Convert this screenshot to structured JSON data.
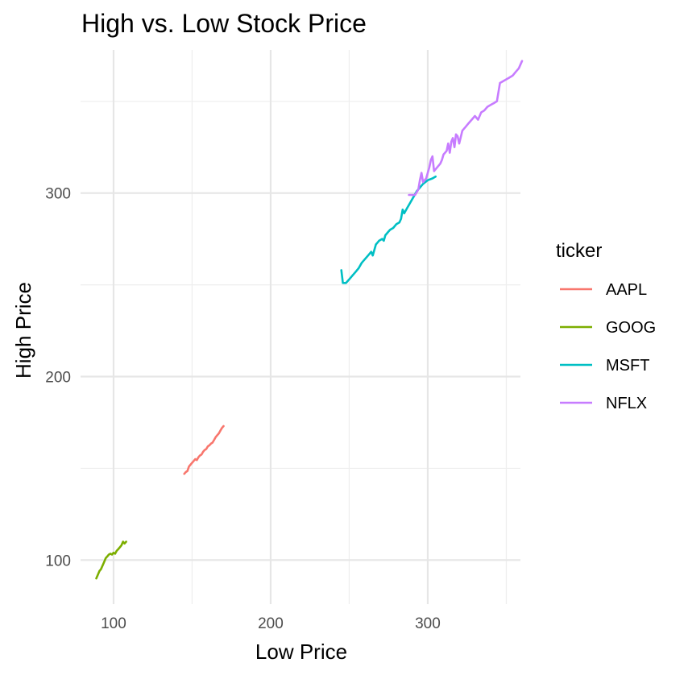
{
  "chart_data": {
    "type": "line",
    "title": "High vs. Low Stock Price",
    "xlabel": "Low Price",
    "ylabel": "High Price",
    "xlim": [
      79,
      359
    ],
    "ylim": [
      76,
      378
    ],
    "xticks": [
      100,
      200,
      300
    ],
    "yticks": [
      100,
      200,
      300
    ],
    "x_minor_ticks": [
      150,
      250,
      350
    ],
    "y_minor_ticks": [
      150,
      250,
      350
    ],
    "grid": true,
    "legend": {
      "title": "ticker",
      "position": "right"
    },
    "series": [
      {
        "name": "AAPL",
        "color": "#F8766D",
        "points": [
          [
            145,
            147
          ],
          [
            146,
            148
          ],
          [
            147,
            148.5
          ],
          [
            148,
            151
          ],
          [
            149,
            152
          ],
          [
            150,
            153
          ],
          [
            151,
            154
          ],
          [
            152,
            155
          ],
          [
            153,
            154.5
          ],
          [
            154,
            156
          ],
          [
            155,
            157
          ],
          [
            156,
            157.5
          ],
          [
            157,
            159
          ],
          [
            158,
            160
          ],
          [
            159,
            160.5
          ],
          [
            160,
            162
          ],
          [
            161,
            162.5
          ],
          [
            162,
            163.5
          ],
          [
            163,
            164
          ],
          [
            164,
            165.5
          ],
          [
            165,
            167
          ],
          [
            166,
            168
          ],
          [
            167,
            169
          ],
          [
            168,
            170.5
          ],
          [
            169,
            172
          ],
          [
            170,
            173
          ]
        ]
      },
      {
        "name": "GOOG",
        "color": "#7CAE00",
        "points": [
          [
            89,
            90
          ],
          [
            90,
            92
          ],
          [
            91,
            94
          ],
          [
            92,
            95
          ],
          [
            93,
            97
          ],
          [
            94,
            99
          ],
          [
            95,
            101
          ],
          [
            96,
            102
          ],
          [
            97,
            103
          ],
          [
            98,
            103.5
          ],
          [
            99,
            103
          ],
          [
            100,
            104
          ],
          [
            101,
            103.5
          ],
          [
            102,
            105
          ],
          [
            103,
            106
          ],
          [
            104,
            107
          ],
          [
            105,
            108
          ],
          [
            106,
            110
          ],
          [
            107,
            109
          ],
          [
            108,
            110
          ]
        ]
      },
      {
        "name": "MSFT",
        "color": "#00BFC4",
        "points": [
          [
            245,
            258
          ],
          [
            246,
            251
          ],
          [
            248,
            251
          ],
          [
            250,
            253
          ],
          [
            252,
            255
          ],
          [
            254,
            257
          ],
          [
            256,
            259
          ],
          [
            258,
            262
          ],
          [
            260,
            264
          ],
          [
            262,
            266
          ],
          [
            264,
            268
          ],
          [
            265,
            266
          ],
          [
            267,
            272
          ],
          [
            268,
            273
          ],
          [
            269,
            274
          ],
          [
            271,
            275
          ],
          [
            272,
            274
          ],
          [
            273,
            277
          ],
          [
            275,
            279
          ],
          [
            276,
            280
          ],
          [
            278,
            281
          ],
          [
            280,
            283
          ],
          [
            282,
            284
          ],
          [
            283,
            286
          ],
          [
            284,
            291
          ],
          [
            285,
            289
          ],
          [
            287,
            292
          ],
          [
            289,
            295
          ],
          [
            291,
            298
          ],
          [
            293,
            301
          ],
          [
            295,
            303
          ],
          [
            297,
            305
          ],
          [
            300,
            307
          ],
          [
            303,
            308
          ],
          [
            305,
            309
          ]
        ]
      },
      {
        "name": "NFLX",
        "color": "#C77CFF",
        "points": [
          [
            288,
            299
          ],
          [
            290,
            299
          ],
          [
            292,
            299
          ],
          [
            294,
            302
          ],
          [
            295,
            307
          ],
          [
            296,
            311
          ],
          [
            297,
            306
          ],
          [
            299,
            308
          ],
          [
            301,
            314
          ],
          [
            302,
            318
          ],
          [
            303,
            320
          ],
          [
            304,
            312
          ],
          [
            306,
            314
          ],
          [
            308,
            316
          ],
          [
            309,
            318
          ],
          [
            310,
            321
          ],
          [
            312,
            323
          ],
          [
            313,
            327
          ],
          [
            314,
            322
          ],
          [
            315,
            328
          ],
          [
            316,
            330
          ],
          [
            317,
            325
          ],
          [
            318,
            332
          ],
          [
            319,
            331
          ],
          [
            320,
            327
          ],
          [
            322,
            334
          ],
          [
            324,
            336
          ],
          [
            326,
            338
          ],
          [
            328,
            340
          ],
          [
            330,
            342
          ],
          [
            332,
            340
          ],
          [
            334,
            344
          ],
          [
            336,
            345
          ],
          [
            338,
            347
          ],
          [
            340,
            348
          ],
          [
            342,
            349
          ],
          [
            344,
            350
          ],
          [
            346,
            360
          ],
          [
            348,
            361
          ],
          [
            350,
            362
          ],
          [
            352,
            363
          ],
          [
            354,
            364
          ],
          [
            356,
            366
          ],
          [
            358,
            368
          ],
          [
            360,
            372
          ]
        ]
      }
    ]
  }
}
